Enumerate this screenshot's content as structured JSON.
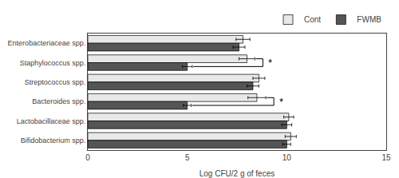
{
  "chart_data": {
    "type": "bar",
    "orientation": "horizontal",
    "categories": [
      "Enterobacteriaceae spp.",
      "Staphylococcus spp.",
      "Streptococcus spp.",
      "Bacteroides spp.",
      "Lactobacillaceae spp.",
      "Bifidobacterium spp."
    ],
    "series": [
      {
        "name": "Cont",
        "color": "#e8e8e8",
        "values": [
          7.8,
          8.0,
          8.6,
          8.5,
          10.1,
          10.2
        ],
        "errors": [
          0.35,
          0.4,
          0.3,
          0.45,
          0.25,
          0.28
        ]
      },
      {
        "name": "FWMB",
        "color": "#555555",
        "values": [
          7.6,
          5.0,
          8.3,
          5.0,
          10.0,
          10.0
        ],
        "errors": [
          0.3,
          0.25,
          0.3,
          0.2,
          0.25,
          0.2
        ]
      }
    ],
    "xlabel": "Log CFU/2 g of feces",
    "xlim": [
      0,
      15
    ],
    "xticks": [
      0,
      5,
      10,
      15
    ],
    "grid": false,
    "legend": "upper right",
    "annotations": [
      {
        "category": "Staphylococcus spp.",
        "text": "*"
      },
      {
        "category": "Bacteroides spp.",
        "text": "*"
      }
    ]
  }
}
